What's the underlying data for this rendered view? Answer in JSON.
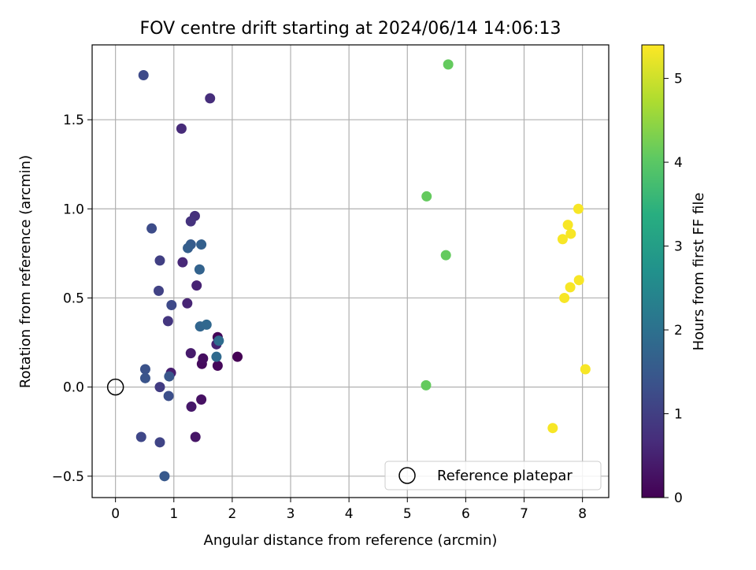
{
  "chart_data": {
    "type": "scatter",
    "title": "FOV centre drift starting at 2024/06/14 14:06:13",
    "xlabel": "Angular distance from reference (arcmin)",
    "ylabel": "Rotation from reference (arcmin)",
    "xlim": [
      -0.4,
      8.45
    ],
    "ylim": [
      -0.62,
      1.92
    ],
    "xticks": [
      0,
      1,
      2,
      3,
      4,
      5,
      6,
      7,
      8
    ],
    "xtick_labels": [
      "0",
      "1",
      "2",
      "3",
      "4",
      "5",
      "6",
      "7",
      "8"
    ],
    "yticks": [
      -0.5,
      0.0,
      0.5,
      1.0,
      1.5
    ],
    "ytick_labels": [
      "−0.5",
      "0.0",
      "0.5",
      "1.0",
      "1.5"
    ],
    "grid": true,
    "colorbar": {
      "label": "Hours from first FF file",
      "colormap": "viridis",
      "range": [
        0,
        5.4
      ],
      "ticks": [
        0,
        1,
        2,
        3,
        4,
        5
      ],
      "tick_labels": [
        "0",
        "1",
        "2",
        "3",
        "4",
        "5"
      ]
    },
    "legend": {
      "position": "lower-right",
      "entries": [
        {
          "label": "Reference platepar",
          "marker": "open-circle"
        }
      ]
    },
    "reference_point": {
      "x": 0,
      "y": 0
    },
    "points": [
      {
        "x": 2.09,
        "y": 0.17,
        "hours": 0.0
      },
      {
        "x": 1.75,
        "y": 0.28,
        "hours": 0.05
      },
      {
        "x": 1.75,
        "y": 0.12,
        "hours": 0.1
      },
      {
        "x": 1.48,
        "y": 0.13,
        "hours": 0.15
      },
      {
        "x": 1.5,
        "y": 0.16,
        "hours": 0.2
      },
      {
        "x": 1.47,
        "y": -0.07,
        "hours": 0.25
      },
      {
        "x": 1.37,
        "y": -0.28,
        "hours": 0.3
      },
      {
        "x": 1.3,
        "y": -0.11,
        "hours": 0.35
      },
      {
        "x": 1.29,
        "y": 0.19,
        "hours": 0.4
      },
      {
        "x": 0.95,
        "y": 0.08,
        "hours": 0.45
      },
      {
        "x": 1.73,
        "y": 0.24,
        "hours": 0.5
      },
      {
        "x": 1.39,
        "y": 0.57,
        "hours": 0.52
      },
      {
        "x": 1.23,
        "y": 0.47,
        "hours": 0.55
      },
      {
        "x": 1.15,
        "y": 0.7,
        "hours": 0.6
      },
      {
        "x": 1.13,
        "y": 1.45,
        "hours": 0.65
      },
      {
        "x": 1.62,
        "y": 1.62,
        "hours": 0.7
      },
      {
        "x": 1.36,
        "y": 0.96,
        "hours": 0.75
      },
      {
        "x": 1.29,
        "y": 0.93,
        "hours": 0.8
      },
      {
        "x": 0.9,
        "y": 0.37,
        "hours": 0.85
      },
      {
        "x": 0.76,
        "y": 0.0,
        "hours": 0.95
      },
      {
        "x": 0.76,
        "y": 0.71,
        "hours": 1.0
      },
      {
        "x": 0.74,
        "y": 0.54,
        "hours": 1.05
      },
      {
        "x": 0.76,
        "y": -0.31,
        "hours": 1.1
      },
      {
        "x": 0.44,
        "y": -0.28,
        "hours": 1.15
      },
      {
        "x": 0.48,
        "y": 1.75,
        "hours": 1.2
      },
      {
        "x": 0.96,
        "y": 0.46,
        "hours": 1.2
      },
      {
        "x": 0.62,
        "y": 0.89,
        "hours": 1.25
      },
      {
        "x": 0.91,
        "y": -0.05,
        "hours": 1.3
      },
      {
        "x": 0.51,
        "y": 0.1,
        "hours": 1.35
      },
      {
        "x": 0.51,
        "y": 0.05,
        "hours": 1.4
      },
      {
        "x": 0.92,
        "y": 0.06,
        "hours": 1.45
      },
      {
        "x": 0.84,
        "y": -0.5,
        "hours": 1.5
      },
      {
        "x": 1.29,
        "y": 0.8,
        "hours": 1.55
      },
      {
        "x": 1.24,
        "y": 0.78,
        "hours": 1.6
      },
      {
        "x": 1.47,
        "y": 0.8,
        "hours": 1.65
      },
      {
        "x": 1.44,
        "y": 0.66,
        "hours": 1.7
      },
      {
        "x": 1.45,
        "y": 0.34,
        "hours": 1.75
      },
      {
        "x": 1.56,
        "y": 0.35,
        "hours": 1.8
      },
      {
        "x": 1.73,
        "y": 0.17,
        "hours": 1.85
      },
      {
        "x": 1.77,
        "y": 0.26,
        "hours": 1.9
      },
      {
        "x": 5.7,
        "y": 1.81,
        "hours": 4.1
      },
      {
        "x": 5.33,
        "y": 1.07,
        "hours": 4.1
      },
      {
        "x": 5.66,
        "y": 0.74,
        "hours": 4.1
      },
      {
        "x": 5.32,
        "y": 0.01,
        "hours": 4.1
      },
      {
        "x": 7.93,
        "y": 1.0,
        "hours": 5.35
      },
      {
        "x": 7.75,
        "y": 0.91,
        "hours": 5.35
      },
      {
        "x": 7.8,
        "y": 0.86,
        "hours": 5.35
      },
      {
        "x": 7.66,
        "y": 0.83,
        "hours": 5.35
      },
      {
        "x": 7.94,
        "y": 0.6,
        "hours": 5.35
      },
      {
        "x": 7.79,
        "y": 0.56,
        "hours": 5.35
      },
      {
        "x": 7.69,
        "y": 0.5,
        "hours": 5.35
      },
      {
        "x": 8.05,
        "y": 0.1,
        "hours": 5.35
      },
      {
        "x": 7.49,
        "y": -0.23,
        "hours": 5.35
      }
    ]
  }
}
